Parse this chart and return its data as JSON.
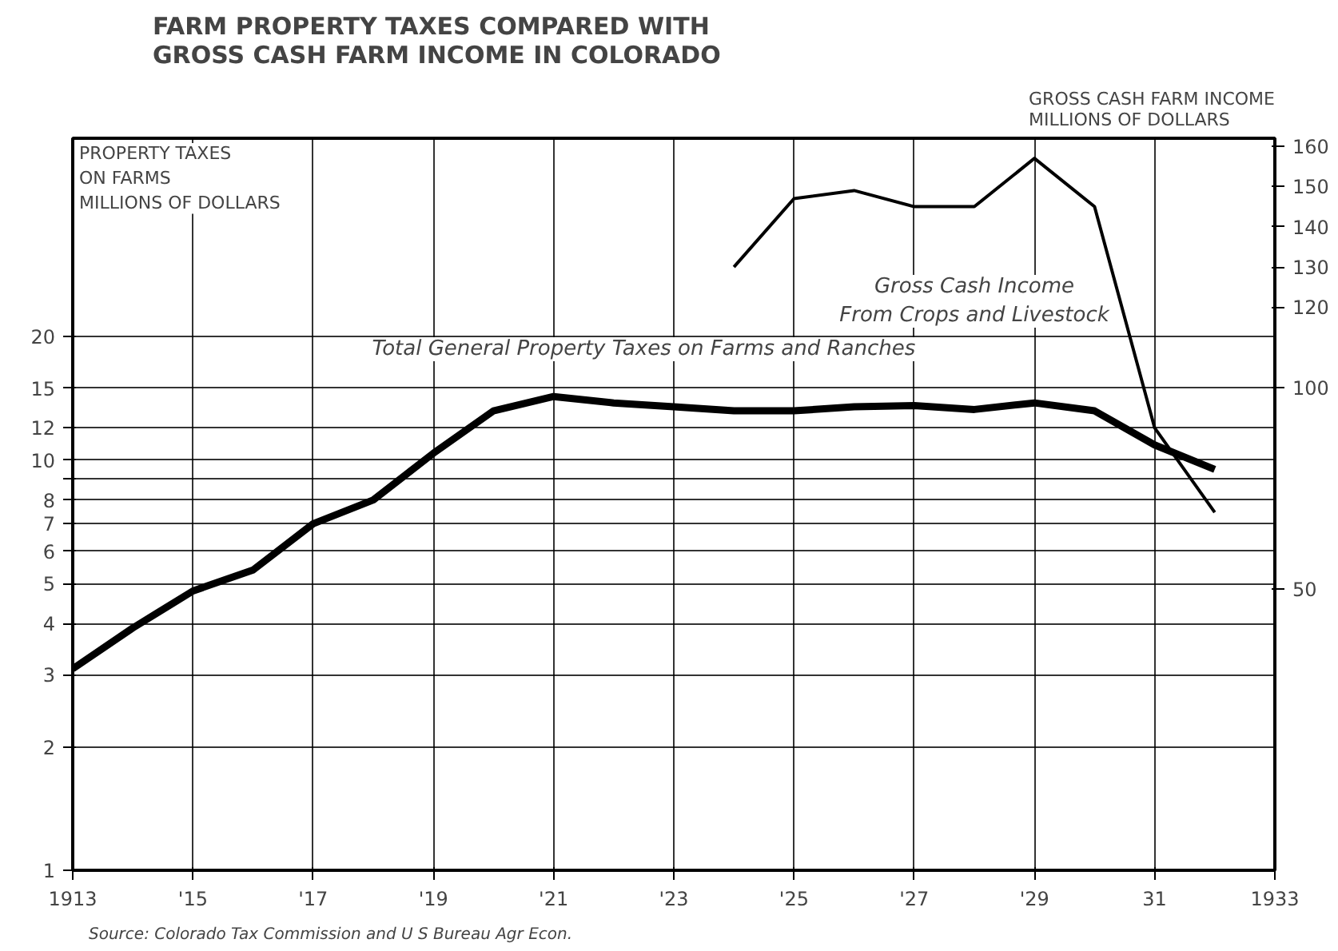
{
  "chart_data": {
    "type": "line",
    "title": "FARM PROPERTY TAXES COMPARED WITH\nGROSS CASH FARM INCOME IN COLORADO",
    "ylabel": "PROPERTY TAXES\nON FARMS\nMILLIONS OF DOLLARS",
    "y2label": "GROSS CASH FARM INCOME\nMILLIONS OF DOLLARS",
    "annotations": [
      "Source: Colorado Tax Commission and U S Bureau Agr Econ."
    ],
    "log": "y",
    "grid": true,
    "xlim": [
      1913,
      1933
    ],
    "xticks": [
      1913,
      {
        "value": 1915,
        "label": "'15"
      },
      {
        "value": 1917,
        "label": "'17"
      },
      {
        "value": 1919,
        "label": "'19"
      },
      {
        "value": 1921,
        "label": "'21"
      },
      {
        "value": 1923,
        "label": "'23"
      },
      {
        "value": 1925,
        "label": "'25"
      },
      {
        "value": 1927,
        "label": "'27"
      },
      {
        "value": 1929,
        "label": "'29"
      },
      {
        "value": 1931,
        "label": "31"
      },
      1933
    ],
    "ylim": [
      1,
      61
    ],
    "yticks": [
      1,
      2,
      3,
      4,
      5,
      6,
      7,
      8,
      {
        "value": 9,
        "label": null
      },
      10,
      12,
      15,
      20
    ],
    "y2lim": [
      -20,
      162
    ],
    "y2ticks": [
      50,
      100,
      120,
      130,
      140,
      150,
      160
    ],
    "series": [
      {
        "name": "Total General Property Taxes on Farms and Ranches",
        "color": "#000000",
        "x": [
          1913,
          1914,
          1915,
          1916,
          1917,
          1918,
          1919,
          1920,
          1921,
          1922,
          1923,
          1924,
          1925,
          1926,
          1927,
          1928,
          1929,
          1930,
          1931,
          1932
        ],
        "values": [
          3.1,
          3.9,
          4.8,
          5.4,
          7.0,
          8.0,
          10.4,
          13.2,
          14.3,
          13.8,
          13.5,
          13.2,
          13.2,
          13.5,
          13.6,
          13.3,
          13.8,
          13.2,
          10.9,
          9.5
        ]
      },
      {
        "name": "Gross Cash Income\nFrom Crops and Livestock",
        "color": "#000000",
        "axis": "y2",
        "x": [
          1924,
          1925,
          1926,
          1927,
          1928,
          1929,
          1930,
          1931,
          1932
        ],
        "values": [
          130,
          147,
          149,
          145,
          145,
          157,
          145,
          90,
          69
        ]
      }
    ]
  }
}
